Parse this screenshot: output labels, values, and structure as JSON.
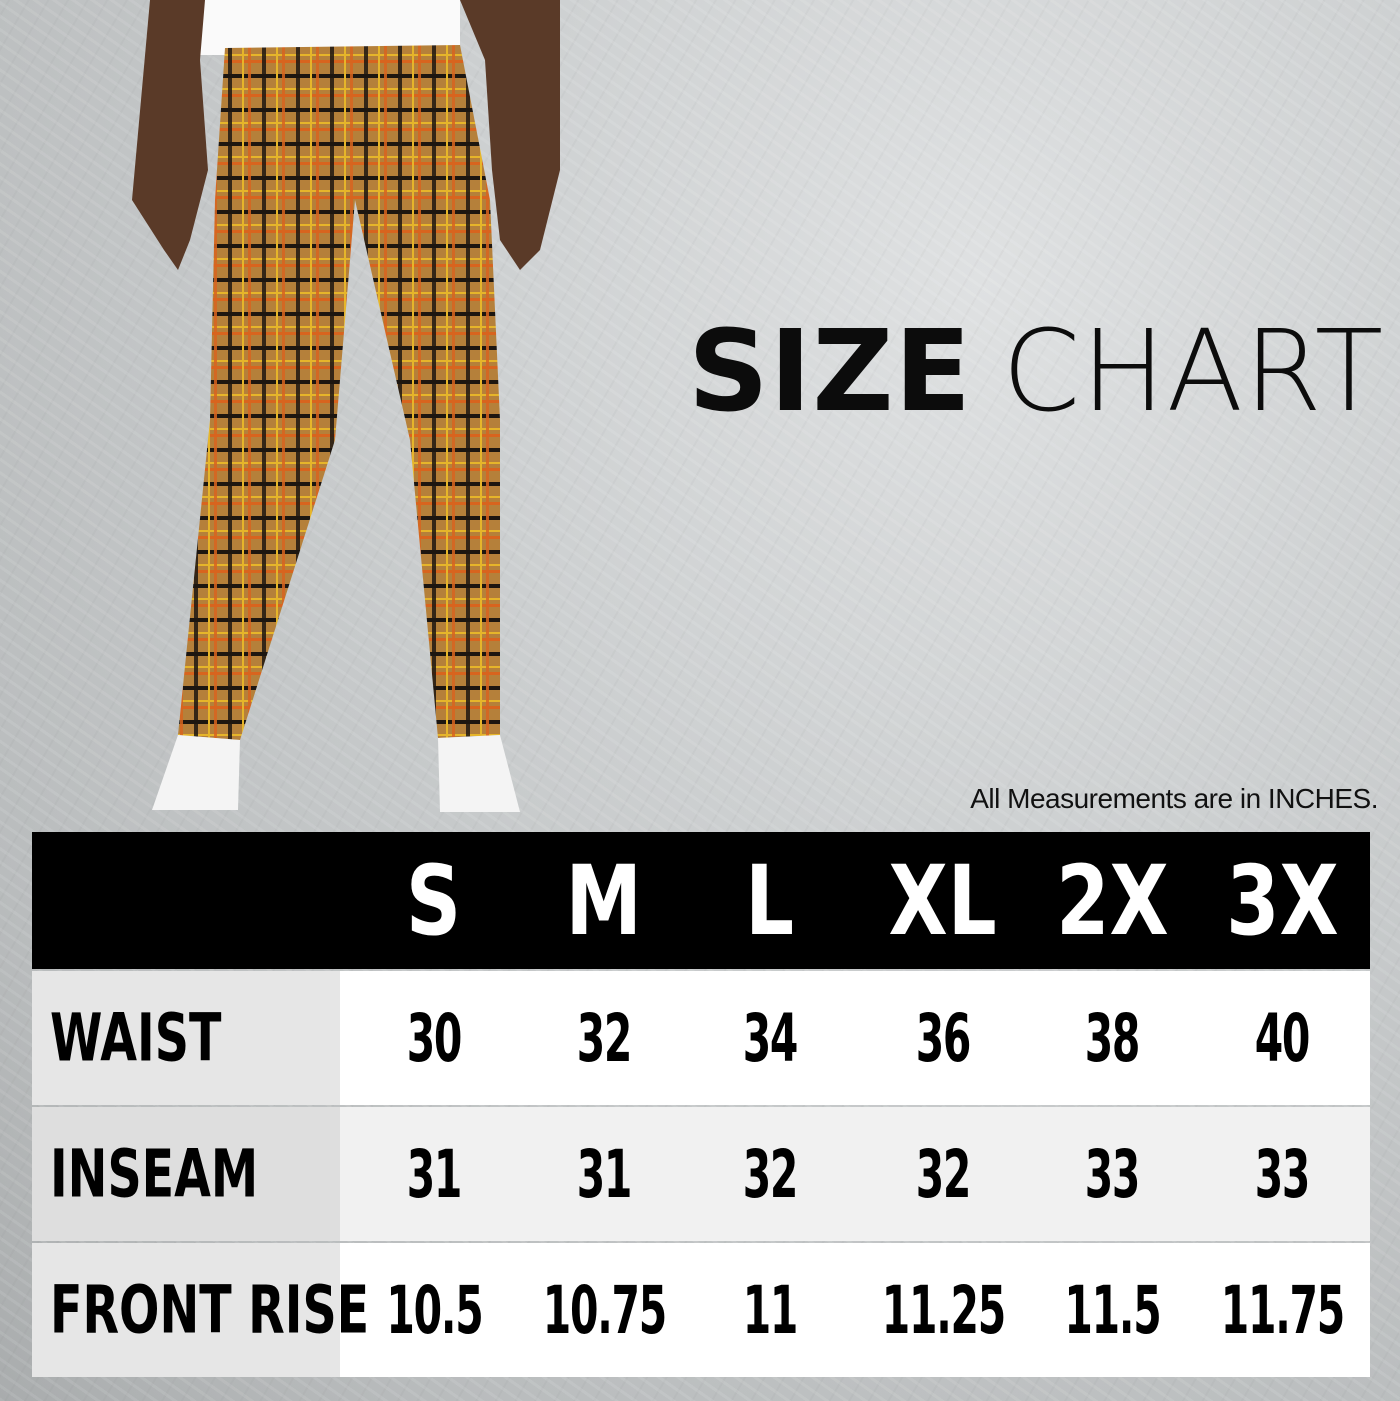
{
  "title": {
    "bold": "SIZE",
    "light": "CHART"
  },
  "note": "All Measurements are in INCHES.",
  "colors": {
    "header_bg": "#000000",
    "label_bg": "#e6e6e6",
    "row_bg_odd": "#ffffff",
    "row_bg_even": "#f1f1f1",
    "plaid_base": "#b5803a"
  },
  "table": {
    "sizes": [
      "S",
      "M",
      "L",
      "XL",
      "2X",
      "3X"
    ],
    "rows": [
      {
        "label": "WAIST",
        "values": [
          "30",
          "32",
          "34",
          "36",
          "38",
          "40"
        ]
      },
      {
        "label": "INSEAM",
        "values": [
          "31",
          "31",
          "32",
          "32",
          "33",
          "33"
        ]
      },
      {
        "label": "FRONT RISE",
        "values": [
          "10.5",
          "10.75",
          "11",
          "11.25",
          "11.5",
          "11.75"
        ]
      }
    ]
  }
}
